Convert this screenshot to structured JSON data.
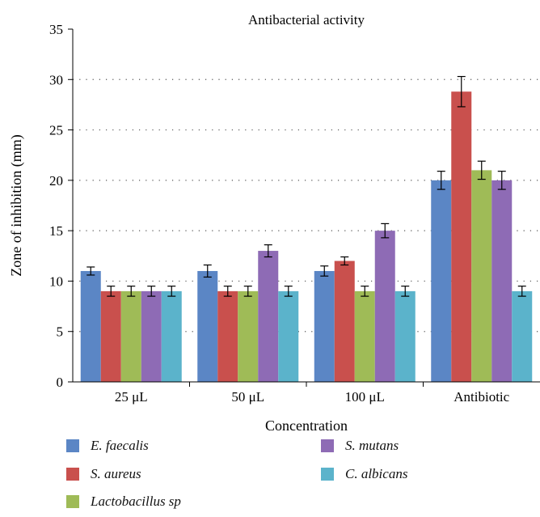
{
  "chart_data": {
    "type": "bar",
    "title": "Antibacterial activity",
    "xlabel": "Concentration",
    "ylabel": "Zone of inhibition (mm)",
    "ylim": [
      0,
      35
    ],
    "yticks": [
      "0",
      "5",
      "10",
      "15",
      "20",
      "25",
      "30",
      "35"
    ],
    "grid": "horizontal dotted",
    "legend_position": "bottom",
    "categories": [
      "25 μL",
      "50 μL",
      "100 μL",
      "Antibiotic"
    ],
    "series": [
      {
        "name": "E. faecalis",
        "color": "#5b86c5",
        "values": [
          11,
          11,
          11,
          20
        ],
        "errors": [
          0.4,
          0.6,
          0.5,
          0.9
        ]
      },
      {
        "name": "S. aureus",
        "color": "#c9504d",
        "values": [
          9,
          9,
          12,
          28.8
        ],
        "errors": [
          0.5,
          0.5,
          0.4,
          1.5
        ]
      },
      {
        "name": "Lactobacillus sp",
        "color": "#9fbb57",
        "values": [
          9,
          9,
          9,
          21
        ],
        "errors": [
          0.5,
          0.5,
          0.5,
          0.9
        ]
      },
      {
        "name": "S. mutans",
        "color": "#8e6bb5",
        "values": [
          9,
          13,
          15,
          20
        ],
        "errors": [
          0.5,
          0.6,
          0.7,
          0.9
        ]
      },
      {
        "name": "C. albicans",
        "color": "#5bb3cb",
        "values": [
          9,
          9,
          9,
          9
        ],
        "errors": [
          0.5,
          0.5,
          0.5,
          0.5
        ]
      }
    ]
  }
}
